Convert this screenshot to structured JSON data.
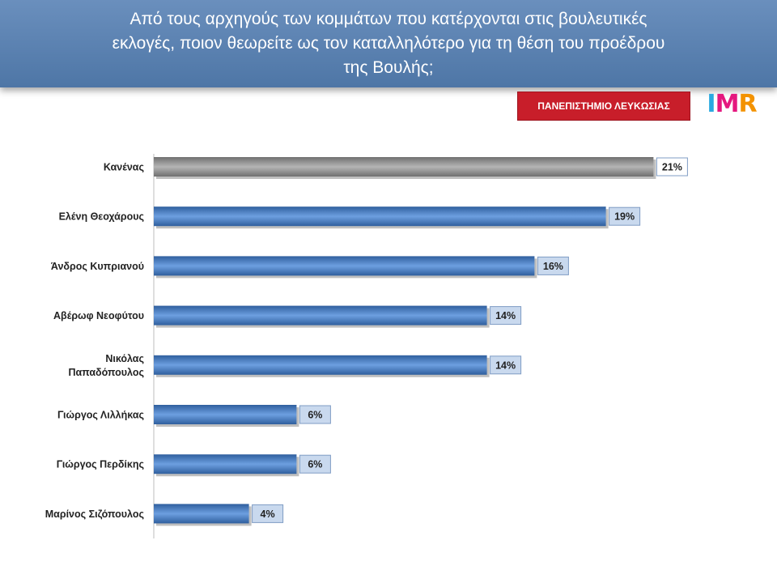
{
  "header": {
    "title": "Από τους αρχηγούς των κομμάτων που κατέρχονται στις βουλευτικές\nεκλογές, ποιον θεωρείτε ως τον καταλληλότερο για τη θέση του προέδρου\nτης Βουλής;"
  },
  "badge": {
    "label": "ΠΑΝΕΠΙΣΤΗΜΙΟ ΛΕΥΚΩΣΙΑΣ"
  },
  "logo": {
    "letters": [
      "I",
      "M",
      "R"
    ],
    "colors": [
      "#2aa9e0",
      "#e5187f",
      "#f39200"
    ]
  },
  "colors": {
    "highlight_bar": "#8c8c8c",
    "bar": "#3c74c4",
    "label_box": "#c9d9ee"
  },
  "chart_data": {
    "type": "bar",
    "orientation": "horizontal",
    "categories": [
      "Κανένας",
      "Ελένη Θεοχάρους",
      "Άνδρος Κυπριανού",
      "Αβέρωφ Νεοφύτου",
      "Νικόλας Παπαδόπουλος",
      "Γιώργος Λιλλήκας",
      "Γιώργος Περδίκης",
      "Μαρίνος Σιζόπουλος"
    ],
    "values": [
      21,
      19,
      16,
      14,
      14,
      6,
      6,
      4
    ],
    "data_labels": [
      "21%",
      "19%",
      "16%",
      "14%",
      "14%",
      "6%",
      "6%",
      "4%"
    ],
    "unit": "%",
    "xlim": [
      0,
      25
    ],
    "highlight_category": "Κανένας",
    "grid": false,
    "legend": "none"
  }
}
